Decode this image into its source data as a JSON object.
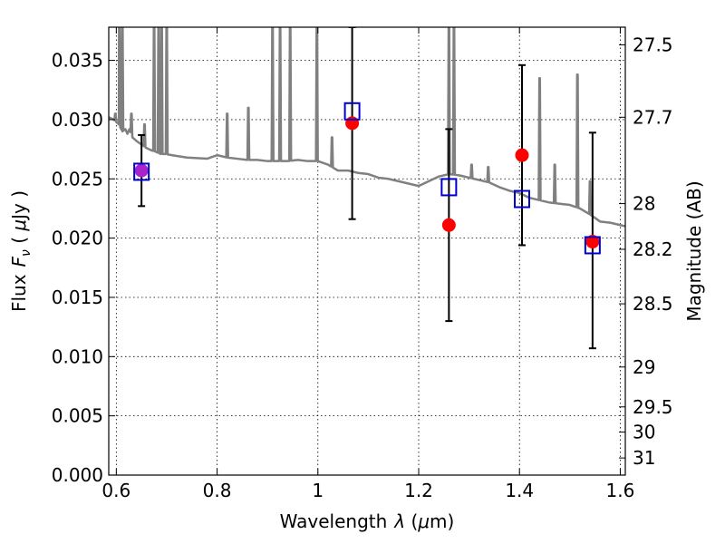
{
  "chart_data": {
    "type": "scatter",
    "xlabel": "Wavelength",
    "xlabel_symbol": "λ",
    "xlabel_unit_open": " (",
    "xlabel_unit_mu": "μ",
    "xlabel_unit_rest": "m)",
    "ylabel": "Flux",
    "ylabel_symbol": "F",
    "ylabel_sub": "ν",
    "ylabel_unit_open": " ( ",
    "ylabel_unit_mu": "μ",
    "ylabel_unit_rest": "Jy )",
    "y2label": "Magnitude (AB)",
    "xlim": [
      0.585,
      1.61
    ],
    "ylim": [
      0.0,
      0.0378
    ],
    "grid": true,
    "x_ticks": [
      0.6,
      0.8,
      1.0,
      1.2,
      1.4,
      1.6
    ],
    "x_tick_labels": [
      "0.6",
      "0.8",
      "1",
      "1.2",
      "1.4",
      "1.6"
    ],
    "y_ticks": [
      0.0,
      0.005,
      0.01,
      0.015,
      0.02,
      0.025,
      0.03,
      0.035
    ],
    "y_tick_labels": [
      "0.000",
      "0.005",
      "0.010",
      "0.015",
      "0.020",
      "0.025",
      "0.030",
      "0.035"
    ],
    "y2_ticks": [
      27.5,
      27.7,
      28,
      28.2,
      28.5,
      29,
      29.5,
      30,
      31
    ],
    "y2_tick_labels": [
      "27.5",
      "27.7",
      "28",
      "28.2",
      "28.5",
      "29",
      "29.5",
      "30",
      "31"
    ],
    "colors": {
      "model": "#808080",
      "observed": "#ff0000",
      "model_photometry": "#0000cc",
      "errorbar": "#000000",
      "overlap": "#aa22cc"
    },
    "model_spectrum": {
      "x": [
        0.585,
        0.595,
        0.605,
        0.612,
        0.618,
        0.622,
        0.626,
        0.632,
        0.64,
        0.65,
        0.66,
        0.67,
        0.678,
        0.688,
        0.698,
        0.71,
        0.74,
        0.78,
        0.8,
        0.82,
        0.84,
        0.86,
        0.88,
        0.9,
        0.92,
        0.94,
        0.96,
        0.98,
        1.0,
        1.02,
        1.04,
        1.06,
        1.08,
        1.1,
        1.12,
        1.14,
        1.16,
        1.18,
        1.2,
        1.22,
        1.24,
        1.26,
        1.28,
        1.3,
        1.32,
        1.34,
        1.36,
        1.38,
        1.4,
        1.42,
        1.44,
        1.46,
        1.48,
        1.5,
        1.52,
        1.54,
        1.56,
        1.58,
        1.6,
        1.61
      ],
      "y": [
        0.0302,
        0.03,
        0.0296,
        0.029,
        0.0292,
        0.0288,
        0.0292,
        0.0285,
        0.0282,
        0.0279,
        0.0276,
        0.0274,
        0.0273,
        0.0271,
        0.0271,
        0.027,
        0.0268,
        0.0267,
        0.027,
        0.0268,
        0.0267,
        0.0266,
        0.0266,
        0.0265,
        0.0265,
        0.0265,
        0.0266,
        0.0265,
        0.0265,
        0.0262,
        0.0257,
        0.0257,
        0.0255,
        0.0254,
        0.0251,
        0.025,
        0.0248,
        0.0246,
        0.0244,
        0.0248,
        0.0252,
        0.0254,
        0.0253,
        0.0251,
        0.0249,
        0.0247,
        0.0243,
        0.024,
        0.0238,
        0.0234,
        0.0232,
        0.023,
        0.0229,
        0.0228,
        0.0225,
        0.022,
        0.0214,
        0.0213,
        0.0211,
        0.021
      ]
    },
    "model_emission_lines": [
      {
        "x": 0.598,
        "peak": 0.0305
      },
      {
        "x": 0.606,
        "peak": 0.0378
      },
      {
        "x": 0.612,
        "peak": 0.0378
      },
      {
        "x": 0.63,
        "peak": 0.0305
      },
      {
        "x": 0.656,
        "peak": 0.0296
      },
      {
        "x": 0.675,
        "peak": 0.0378
      },
      {
        "x": 0.684,
        "peak": 0.0378
      },
      {
        "x": 0.69,
        "peak": 0.0378
      },
      {
        "x": 0.7,
        "peak": 0.0378
      },
      {
        "x": 0.82,
        "peak": 0.0305
      },
      {
        "x": 0.862,
        "peak": 0.031
      },
      {
        "x": 0.91,
        "peak": 0.0378
      },
      {
        "x": 0.925,
        "peak": 0.0378
      },
      {
        "x": 0.945,
        "peak": 0.0378
      },
      {
        "x": 0.998,
        "peak": 0.0378
      },
      {
        "x": 1.028,
        "peak": 0.0285
      },
      {
        "x": 1.26,
        "peak": 0.0378
      },
      {
        "x": 1.27,
        "peak": 0.0378
      },
      {
        "x": 1.305,
        "peak": 0.0262
      },
      {
        "x": 1.338,
        "peak": 0.026
      },
      {
        "x": 1.44,
        "peak": 0.0335
      },
      {
        "x": 1.47,
        "peak": 0.0262
      },
      {
        "x": 1.515,
        "peak": 0.0338
      },
      {
        "x": 1.54,
        "peak": 0.0248
      }
    ],
    "observed": [
      {
        "x": 0.65,
        "y": 0.0257,
        "yerr_low": 0.0227,
        "yerr_high": 0.0287
      },
      {
        "x": 1.068,
        "y": 0.0297,
        "yerr_low": 0.0216,
        "yerr_high": 0.0378
      },
      {
        "x": 1.26,
        "y": 0.0211,
        "yerr_low": 0.013,
        "yerr_high": 0.0292
      },
      {
        "x": 1.405,
        "y": 0.027,
        "yerr_low": 0.0194,
        "yerr_high": 0.0346
      },
      {
        "x": 1.545,
        "y": 0.0197,
        "yerr_low": 0.0107,
        "yerr_high": 0.0289
      }
    ],
    "model_photometry": [
      {
        "x": 0.65,
        "y": 0.0256
      },
      {
        "x": 1.068,
        "y": 0.0307
      },
      {
        "x": 1.26,
        "y": 0.0243
      },
      {
        "x": 1.405,
        "y": 0.0233
      },
      {
        "x": 1.545,
        "y": 0.0194
      }
    ]
  }
}
